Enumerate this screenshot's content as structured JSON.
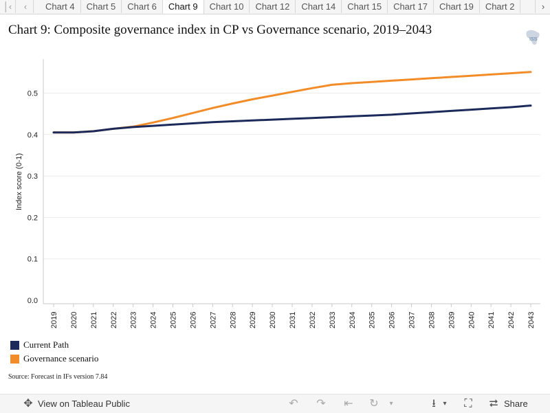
{
  "tabs": [
    "Chart 4",
    "Chart 5",
    "Chart 6",
    "Chart 9",
    "Chart 10",
    "Chart 12",
    "Chart 14",
    "Chart 15",
    "Chart 17",
    "Chart 19",
    "Chart 2"
  ],
  "active_tab_index": 3,
  "title": "Chart 9: Composite governance index in CP vs Governance scenario, 2019–2043",
  "logo_text": "ISS",
  "chart_data": {
    "type": "line",
    "title": "Chart 9: Composite governance index in CP vs Governance scenario, 2019–2043",
    "xlabel": "",
    "ylabel": "Index score (0-1)",
    "ylim": [
      0,
      0.55
    ],
    "yticks": [
      0.0,
      0.1,
      0.2,
      0.3,
      0.4,
      0.5
    ],
    "ytick_labels": [
      "0.0",
      "0.1",
      "0.2",
      "0.3",
      "0.4",
      "0.5"
    ],
    "x": [
      2019,
      2020,
      2021,
      2022,
      2023,
      2024,
      2025,
      2026,
      2027,
      2028,
      2029,
      2030,
      2031,
      2032,
      2033,
      2034,
      2035,
      2036,
      2037,
      2038,
      2039,
      2040,
      2041,
      2042,
      2043
    ],
    "grid": "horizontal",
    "series": [
      {
        "name": "Current Path",
        "color": "#1b2a5a",
        "values": [
          0.405,
          0.405,
          0.408,
          0.414,
          0.418,
          0.421,
          0.424,
          0.427,
          0.43,
          0.432,
          0.434,
          0.436,
          0.438,
          0.44,
          0.442,
          0.444,
          0.446,
          0.448,
          0.451,
          0.454,
          0.457,
          0.46,
          0.463,
          0.466,
          0.47
        ]
      },
      {
        "name": "Governance scenario",
        "color": "#f28c28",
        "values": [
          0.405,
          0.405,
          0.408,
          0.414,
          0.419,
          0.429,
          0.44,
          0.452,
          0.464,
          0.475,
          0.485,
          0.494,
          0.503,
          0.512,
          0.52,
          0.524,
          0.527,
          0.53,
          0.533,
          0.536,
          0.539,
          0.542,
          0.545,
          0.548,
          0.551
        ]
      }
    ]
  },
  "legend": [
    {
      "label": "Current Path",
      "color": "#1b2a5a"
    },
    {
      "label": "Governance scenario",
      "color": "#f28c28"
    }
  ],
  "source": "Source: Forecast in IFs version 7.84",
  "toolbar": {
    "view_label": "View on Tableau Public",
    "share_label": "Share"
  }
}
